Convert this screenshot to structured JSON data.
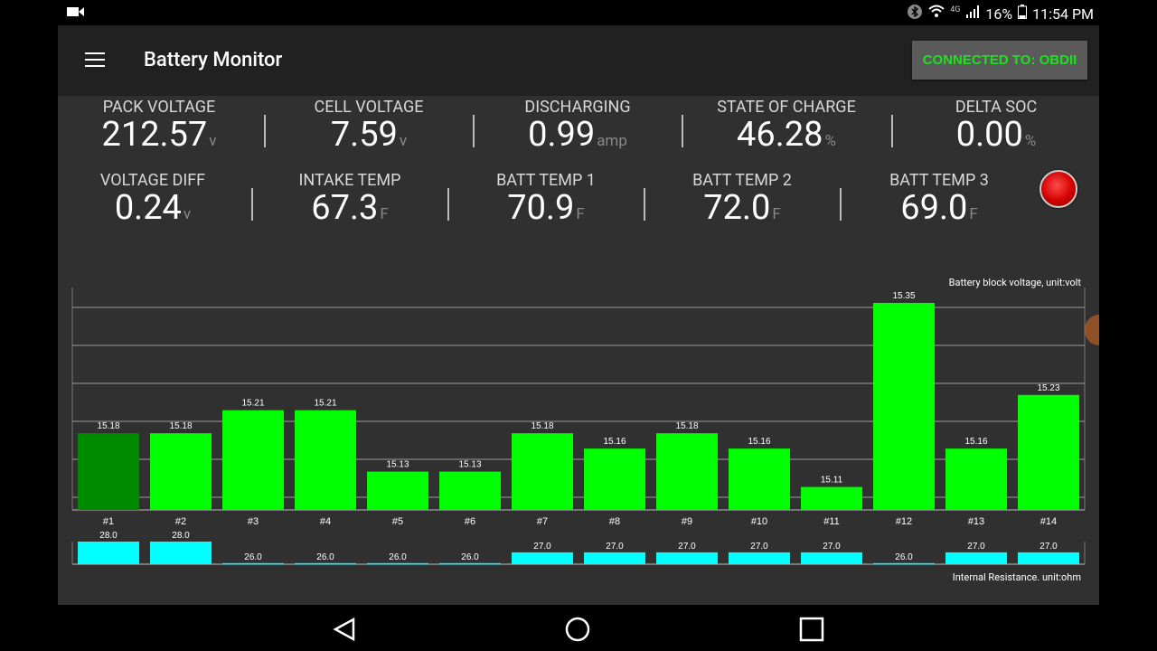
{
  "status_bar": {
    "icons": [
      "video-icon",
      "bluetooth-icon",
      "wifi-icon",
      "signal-icon",
      "battery-icon"
    ],
    "network_label": "4G",
    "battery_percent": "16%",
    "time": "11:54 PM"
  },
  "toolbar": {
    "title": "Battery Monitor",
    "connect_label": "CONNECTED TO: OBDII"
  },
  "metrics_row1": [
    {
      "label": "PACK VOLTAGE",
      "value": "212.57",
      "unit": "v"
    },
    {
      "label": "CELL VOLTAGE",
      "value": "7.59",
      "unit": "v"
    },
    {
      "label": "DISCHARGING",
      "value": "0.99",
      "unit": "amp"
    },
    {
      "label": "STATE OF CHARGE",
      "value": "46.28",
      "unit": "%"
    },
    {
      "label": "DELTA SOC",
      "value": "0.00",
      "unit": "%"
    }
  ],
  "metrics_row2": [
    {
      "label": "VOLTAGE DIFF",
      "value": "0.24",
      "unit": "v"
    },
    {
      "label": "INTAKE TEMP",
      "value": "67.3",
      "unit": "F"
    },
    {
      "label": "BATT TEMP 1",
      "value": "70.9",
      "unit": "F"
    },
    {
      "label": "BATT TEMP 2",
      "value": "72.0",
      "unit": "F"
    },
    {
      "label": "BATT TEMP 3",
      "value": "69.0",
      "unit": "F"
    }
  ],
  "record_button_icon": "record-icon",
  "chart_data": [
    {
      "type": "bar",
      "title": "Battery block voltage, unit:volt",
      "categories": [
        "#1",
        "#2",
        "#3",
        "#4",
        "#5",
        "#6",
        "#7",
        "#8",
        "#9",
        "#10",
        "#11",
        "#12",
        "#13",
        "#14"
      ],
      "values": [
        15.18,
        15.18,
        15.21,
        15.21,
        15.13,
        15.13,
        15.18,
        15.16,
        15.18,
        15.16,
        15.11,
        15.35,
        15.16,
        15.23
      ],
      "ylim": [
        15.08,
        15.37
      ],
      "grid": true,
      "bar_color": "#00ff00",
      "highlight_color": "#008a00",
      "highlight_index": 0
    },
    {
      "type": "bar",
      "title": "Internal Resistance. unit:ohm",
      "categories": [
        "#1",
        "#2",
        "#3",
        "#4",
        "#5",
        "#6",
        "#7",
        "#8",
        "#9",
        "#10",
        "#11",
        "#12",
        "#13",
        "#14"
      ],
      "values": [
        28.0,
        28.0,
        26.0,
        26.0,
        26.0,
        26.0,
        27.0,
        27.0,
        27.0,
        27.0,
        27.0,
        26.0,
        27.0,
        27.0
      ],
      "ylim": [
        25.9,
        28.0
      ],
      "bar_color": "#00ffff"
    }
  ],
  "nav_bar": {
    "buttons": [
      "back-icon",
      "home-icon",
      "recents-icon"
    ]
  }
}
